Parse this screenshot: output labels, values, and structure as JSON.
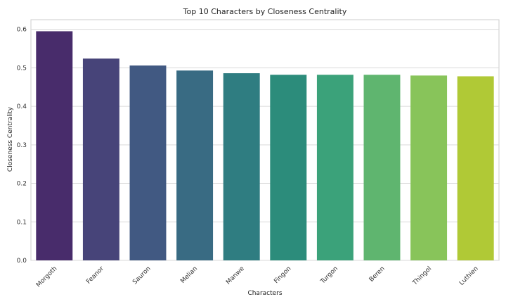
{
  "chart_data": {
    "type": "bar",
    "title": "Top 10 Characters by Closeness Centrality",
    "xlabel": "Characters",
    "ylabel": "Closeness Centrality",
    "categories": [
      "Morgoth",
      "Feanor",
      "Sauron",
      "Melian",
      "Manwe",
      "Fingon",
      "Turgon",
      "Beren",
      "Thingol",
      "Luthien"
    ],
    "values": [
      0.595,
      0.524,
      0.506,
      0.493,
      0.486,
      0.482,
      0.482,
      0.482,
      0.48,
      0.478
    ],
    "ylim": [
      0,
      0.625
    ],
    "yticks": [
      "0.0",
      "0.1",
      "0.2",
      "0.3",
      "0.4",
      "0.5",
      "0.6"
    ],
    "grid": "horizontal",
    "colors": [
      "#482c6b",
      "#474479",
      "#415982",
      "#396b83",
      "#2f7d81",
      "#2c8c7b",
      "#3ba27a",
      "#5fb56f",
      "#88c45a",
      "#b0c936"
    ]
  }
}
